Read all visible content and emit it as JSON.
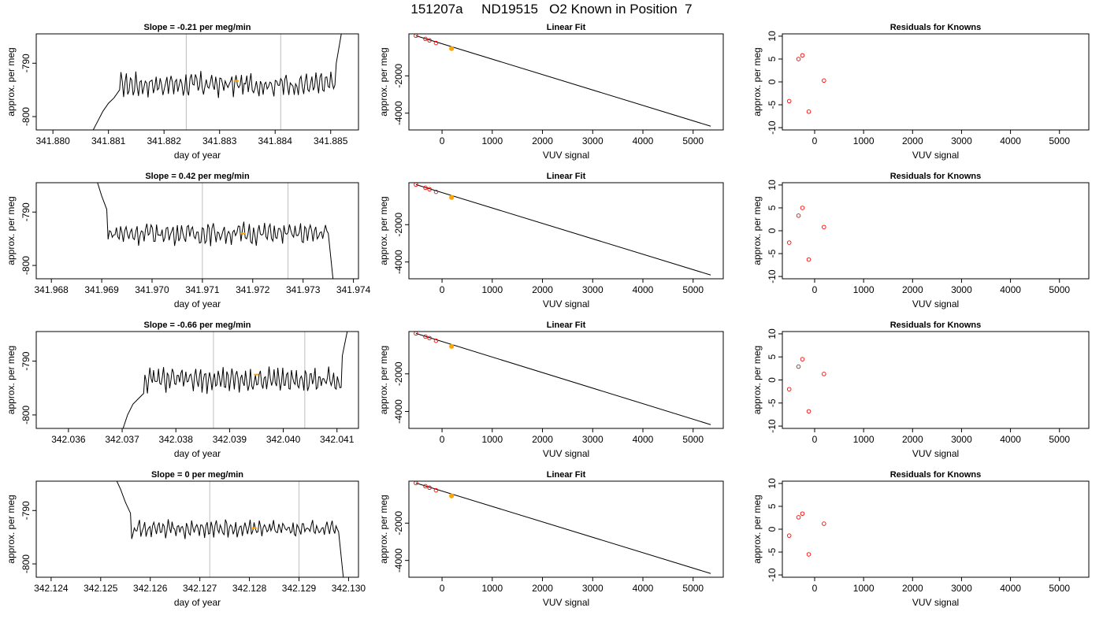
{
  "page_title": "151207a     ND19515   O2 Known in Position  7",
  "colors": {
    "trace": "#000000",
    "vline": "#bebebe",
    "highlight": "#ffa500",
    "residual": "#ff0000",
    "known_point": "#000000"
  },
  "chart_data": [
    {
      "type": "line",
      "row": 0,
      "panel": "time-series",
      "title": "Slope =  -0.21  per meg/min",
      "xlabel": "day of year",
      "ylabel": "approx. per meg",
      "xlim": [
        341.8797,
        341.8855
      ],
      "ylim": [
        -802.5,
        -784.5
      ],
      "xticks": [
        341.88,
        341.881,
        341.882,
        341.883,
        341.884,
        341.885
      ],
      "xtick_labels": [
        "341.880",
        "341.881",
        "341.882",
        "341.883",
        "341.884",
        "341.885"
      ],
      "yticks": [
        -790,
        -800
      ],
      "ytick_labels": [
        "-790",
        "-800"
      ],
      "trace_range": [
        341.8807,
        341.8852
      ],
      "trace_segments": [
        {
          "x": 341.8807,
          "y": -803
        },
        {
          "x": 341.8808,
          "y": -801
        },
        {
          "x": 341.8809,
          "y": -799
        },
        {
          "x": 341.881,
          "y": -797.5
        },
        {
          "x": 341.8811,
          "y": -796.5
        },
        {
          "x": 341.8812,
          "y": -795
        }
      ],
      "trace_baseline": -794,
      "trace_amp": 2.6,
      "trace_end": [
        {
          "x": 341.8851,
          "y": -790
        },
        {
          "x": 341.8852,
          "y": -784
        }
      ],
      "vlines": [
        341.8824,
        341.8841
      ],
      "highlight_point": {
        "x": 341.8833,
        "y": -793.3
      }
    },
    {
      "type": "scatter",
      "row": 0,
      "panel": "linear-fit",
      "title": "Linear Fit",
      "xlabel": "VUV signal",
      "ylabel": "approx. per meg",
      "xlim": [
        -660,
        5600
      ],
      "ylim": [
        -4900,
        250
      ],
      "xticks": [
        0,
        1000,
        2000,
        3000,
        4000,
        5000
      ],
      "xtick_labels": [
        "0",
        "1000",
        "2000",
        "3000",
        "4000",
        "5000"
      ],
      "yticks": [
        -2000,
        -4000
      ],
      "ytick_labels": [
        "-2000",
        "-4000"
      ],
      "points": [
        {
          "x": -520,
          "y": 150
        },
        {
          "x": -330,
          "y": -20
        },
        {
          "x": -250,
          "y": -100
        },
        {
          "x": -120,
          "y": -240
        }
      ],
      "highlight_point": {
        "x": 190,
        "y": -540
      },
      "fit_line": [
        {
          "x": -520,
          "y": 150
        },
        {
          "x": 5350,
          "y": -4700
        }
      ]
    },
    {
      "type": "scatter",
      "row": 0,
      "panel": "residuals",
      "title": "Residuals for Knowns",
      "xlabel": "VUV signal",
      "ylabel": "approx. per meg",
      "xlim": [
        -660,
        5600
      ],
      "ylim": [
        -10.5,
        10.5
      ],
      "xticks": [
        0,
        1000,
        2000,
        3000,
        4000,
        5000
      ],
      "xtick_labels": [
        "0",
        "1000",
        "2000",
        "3000",
        "4000",
        "5000"
      ],
      "yticks": [
        10,
        5,
        0,
        -5,
        -10
      ],
      "ytick_labels": [
        "10",
        "5",
        "0",
        "-5",
        "-10"
      ],
      "points": [
        {
          "x": -520,
          "y": -4.2
        },
        {
          "x": -330,
          "y": 5.0
        },
        {
          "x": -250,
          "y": 5.8
        },
        {
          "x": -120,
          "y": -6.5
        },
        {
          "x": 190,
          "y": 0.3
        }
      ]
    },
    {
      "type": "line",
      "row": 1,
      "panel": "time-series",
      "title": "Slope =  0.42  per meg/min",
      "xlabel": "day of year",
      "ylabel": "approx. per meg",
      "xlim": [
        341.9677,
        341.9741
      ],
      "ylim": [
        -802.5,
        -784.5
      ],
      "xticks": [
        341.968,
        341.969,
        341.97,
        341.971,
        341.972,
        341.973,
        341.974
      ],
      "xtick_labels": [
        "341.968",
        "341.969",
        "341.970",
        "341.971",
        "341.972",
        "341.973",
        "341.974"
      ],
      "yticks": [
        -790,
        -800
      ],
      "ytick_labels": [
        "-790",
        "-800"
      ],
      "trace_range": [
        341.9689,
        341.9736
      ],
      "trace_segments": [
        {
          "x": 341.9689,
          "y": -784
        },
        {
          "x": 341.969,
          "y": -787
        },
        {
          "x": 341.9691,
          "y": -789.5
        }
      ],
      "trace_baseline": -794,
      "trace_amp": 2.4,
      "trace_end": [
        {
          "x": 341.9735,
          "y": -794
        },
        {
          "x": 341.9736,
          "y": -803
        }
      ],
      "vlines": [
        341.971,
        341.9727
      ],
      "highlight_point": {
        "x": 341.9718,
        "y": -794.0
      }
    },
    {
      "type": "scatter",
      "row": 1,
      "panel": "linear-fit",
      "title": "Linear Fit",
      "xlabel": "VUV signal",
      "ylabel": "approx. per meg",
      "xlim": [
        -660,
        5600
      ],
      "ylim": [
        -4900,
        250
      ],
      "xticks": [
        0,
        1000,
        2000,
        3000,
        4000,
        5000
      ],
      "xtick_labels": [
        "0",
        "1000",
        "2000",
        "3000",
        "4000",
        "5000"
      ],
      "yticks": [
        -2000,
        -4000
      ],
      "ytick_labels": [
        "-2000",
        "-4000"
      ],
      "points": [
        {
          "x": -520,
          "y": 150
        },
        {
          "x": -330,
          "y": -20
        },
        {
          "x": -250,
          "y": -100
        },
        {
          "x": -120,
          "y": -240
        }
      ],
      "highlight_point": {
        "x": 190,
        "y": -540
      },
      "fit_line": [
        {
          "x": -520,
          "y": 150
        },
        {
          "x": 5350,
          "y": -4700
        }
      ]
    },
    {
      "type": "scatter",
      "row": 1,
      "panel": "residuals",
      "title": "Residuals for Knowns",
      "xlabel": "VUV signal",
      "ylabel": "approx. per meg",
      "xlim": [
        -660,
        5600
      ],
      "ylim": [
        -10.5,
        10.5
      ],
      "xticks": [
        0,
        1000,
        2000,
        3000,
        4000,
        5000
      ],
      "xtick_labels": [
        "0",
        "1000",
        "2000",
        "3000",
        "4000",
        "5000"
      ],
      "yticks": [
        10,
        5,
        0,
        -5,
        -10
      ],
      "ytick_labels": [
        "10",
        "5",
        "0",
        "-5",
        "-10"
      ],
      "points": [
        {
          "x": -520,
          "y": -2.6
        },
        {
          "x": -330,
          "y": 3.3
        },
        {
          "x": -250,
          "y": 5.0
        },
        {
          "x": -120,
          "y": -6.3
        },
        {
          "x": 190,
          "y": 0.8
        }
      ]
    },
    {
      "type": "line",
      "row": 2,
      "panel": "time-series",
      "title": "Slope =  -0.66  per meg/min",
      "xlabel": "day of year",
      "ylabel": "approx. per meg",
      "xlim": [
        342.0354,
        342.0414
      ],
      "ylim": [
        -802.5,
        -784.5
      ],
      "xticks": [
        342.036,
        342.037,
        342.038,
        342.039,
        342.04,
        342.041
      ],
      "xtick_labels": [
        "342.036",
        "342.037",
        "342.038",
        "342.039",
        "342.040",
        "342.041"
      ],
      "yticks": [
        -790,
        -800
      ],
      "ytick_labels": [
        "-790",
        "-800"
      ],
      "trace_range": [
        342.037,
        342.0412
      ],
      "trace_segments": [
        {
          "x": 342.037,
          "y": -803
        },
        {
          "x": 342.0371,
          "y": -800
        },
        {
          "x": 342.0372,
          "y": -798
        },
        {
          "x": 342.0373,
          "y": -797
        },
        {
          "x": 342.0374,
          "y": -796
        }
      ],
      "trace_baseline": -793.5,
      "trace_amp": 2.6,
      "trace_end": [
        {
          "x": 342.0411,
          "y": -789
        },
        {
          "x": 342.0412,
          "y": -784
        }
      ],
      "vlines": [
        342.0387,
        342.0404
      ],
      "highlight_point": {
        "x": 342.0395,
        "y": -792.5
      }
    },
    {
      "type": "scatter",
      "row": 2,
      "panel": "linear-fit",
      "title": "Linear Fit",
      "xlabel": "VUV signal",
      "ylabel": "approx. per meg",
      "xlim": [
        -660,
        5600
      ],
      "ylim": [
        -4900,
        250
      ],
      "xticks": [
        0,
        1000,
        2000,
        3000,
        4000,
        5000
      ],
      "xtick_labels": [
        "0",
        "1000",
        "2000",
        "3000",
        "4000",
        "5000"
      ],
      "yticks": [
        -2000,
        -4000
      ],
      "ytick_labels": [
        "-2000",
        "-4000"
      ],
      "points": [
        {
          "x": -520,
          "y": 150
        },
        {
          "x": -330,
          "y": -20
        },
        {
          "x": -250,
          "y": -100
        },
        {
          "x": -120,
          "y": -240
        }
      ],
      "highlight_point": {
        "x": 190,
        "y": -540
      },
      "fit_line": [
        {
          "x": -520,
          "y": 150
        },
        {
          "x": 5350,
          "y": -4700
        }
      ]
    },
    {
      "type": "scatter",
      "row": 2,
      "panel": "residuals",
      "title": "Residuals for Knowns",
      "xlabel": "VUV signal",
      "ylabel": "approx. per meg",
      "xlim": [
        -660,
        5600
      ],
      "ylim": [
        -10.5,
        10.5
      ],
      "xticks": [
        0,
        1000,
        2000,
        3000,
        4000,
        5000
      ],
      "xtick_labels": [
        "0",
        "1000",
        "2000",
        "3000",
        "4000",
        "5000"
      ],
      "yticks": [
        10,
        5,
        0,
        -5,
        -10
      ],
      "ytick_labels": [
        "10",
        "5",
        "0",
        "-5",
        "-10"
      ],
      "points": [
        {
          "x": -520,
          "y": -2.0
        },
        {
          "x": -330,
          "y": 2.9
        },
        {
          "x": -250,
          "y": 4.5
        },
        {
          "x": -120,
          "y": -6.8
        },
        {
          "x": 190,
          "y": 1.3
        }
      ]
    },
    {
      "type": "line",
      "row": 3,
      "panel": "time-series",
      "title": "Slope =  0  per meg/min",
      "xlabel": "day of year",
      "ylabel": "approx. per meg",
      "xlim": [
        342.1237,
        342.1302
      ],
      "ylim": [
        -802.5,
        -784.5
      ],
      "xticks": [
        342.124,
        342.125,
        342.126,
        342.127,
        342.128,
        342.129,
        342.13
      ],
      "xtick_labels": [
        "342.124",
        "342.125",
        "342.126",
        "342.127",
        "342.128",
        "342.129",
        "342.130"
      ],
      "yticks": [
        -790,
        -800
      ],
      "ytick_labels": [
        "-790",
        "-800"
      ],
      "trace_range": [
        342.1253,
        342.1299
      ],
      "trace_segments": [
        {
          "x": 342.1253,
          "y": -784
        },
        {
          "x": 342.1254,
          "y": -786
        },
        {
          "x": 342.1255,
          "y": -788.5
        },
        {
          "x": 342.1256,
          "y": -790.5
        }
      ],
      "trace_baseline": -793.5,
      "trace_amp": 1.9,
      "trace_end": [
        {
          "x": 342.1298,
          "y": -794
        },
        {
          "x": 342.1299,
          "y": -803
        }
      ],
      "vlines": [
        342.1272,
        342.129
      ],
      "highlight_point": {
        "x": 342.1281,
        "y": -793.3
      }
    },
    {
      "type": "scatter",
      "row": 3,
      "panel": "linear-fit",
      "title": "Linear Fit",
      "xlabel": "VUV signal",
      "ylabel": "approx. per meg",
      "xlim": [
        -660,
        5600
      ],
      "ylim": [
        -4900,
        250
      ],
      "xticks": [
        0,
        1000,
        2000,
        3000,
        4000,
        5000
      ],
      "xtick_labels": [
        "0",
        "1000",
        "2000",
        "3000",
        "4000",
        "5000"
      ],
      "yticks": [
        -2000,
        -4000
      ],
      "ytick_labels": [
        "-2000",
        "-4000"
      ],
      "points": [
        {
          "x": -520,
          "y": 150
        },
        {
          "x": -330,
          "y": -20
        },
        {
          "x": -250,
          "y": -100
        },
        {
          "x": -120,
          "y": -240
        }
      ],
      "highlight_point": {
        "x": 190,
        "y": -540
      },
      "fit_line": [
        {
          "x": -520,
          "y": 150
        },
        {
          "x": 5350,
          "y": -4700
        }
      ]
    },
    {
      "type": "scatter",
      "row": 3,
      "panel": "residuals",
      "title": "Residuals for Knowns",
      "xlabel": "VUV signal",
      "ylabel": "approx. per meg",
      "xlim": [
        -660,
        5600
      ],
      "ylim": [
        -10.5,
        10.5
      ],
      "xticks": [
        0,
        1000,
        2000,
        3000,
        4000,
        5000
      ],
      "xtick_labels": [
        "0",
        "1000",
        "2000",
        "3000",
        "4000",
        "5000"
      ],
      "yticks": [
        10,
        5,
        0,
        -5,
        -10
      ],
      "ytick_labels": [
        "10",
        "5",
        "0",
        "-5",
        "-10"
      ],
      "points": [
        {
          "x": -520,
          "y": -1.4
        },
        {
          "x": -330,
          "y": 2.6
        },
        {
          "x": -250,
          "y": 3.4
        },
        {
          "x": -120,
          "y": -5.5
        },
        {
          "x": 190,
          "y": 1.2
        }
      ]
    }
  ]
}
